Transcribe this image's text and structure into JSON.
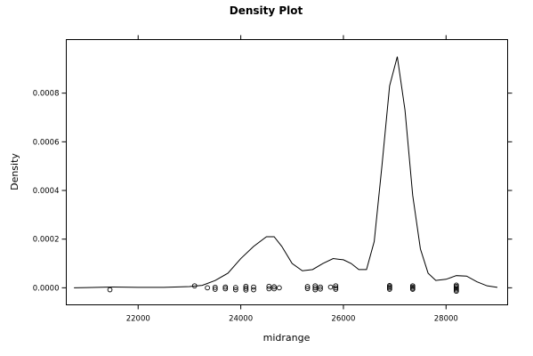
{
  "chart_data": {
    "type": "line",
    "title": "Density Plot",
    "xlabel": "midrange",
    "ylabel": "Density",
    "xlim": [
      20600,
      29200
    ],
    "ylim": [
      -7e-05,
      0.00102
    ],
    "x_ticks": [
      22000,
      24000,
      26000,
      28000
    ],
    "y_ticks": [
      0,
      0.0002,
      0.0004,
      0.0006,
      0.0008
    ],
    "x_tick_labels": [
      "22000",
      "24000",
      "26000",
      "28000"
    ],
    "y_tick_labels": [
      "0.0000",
      "0.0002",
      "0.0004",
      "0.0006",
      "0.0008"
    ],
    "grid": false,
    "series": [
      {
        "x": [
          20750,
          21000,
          21500,
          22000,
          22500,
          23000,
          23250,
          23500,
          23750,
          24000,
          24250,
          24500,
          24650,
          24800,
          25000,
          25200,
          25400,
          25600,
          25800,
          26000,
          26150,
          26300,
          26450,
          26600,
          26750,
          26900,
          27050,
          27200,
          27350,
          27500,
          27650,
          27800,
          28000,
          28200,
          28400,
          28600,
          28800,
          29000
        ],
        "y": [
          0.0,
          1e-06,
          3e-06,
          2e-06,
          2e-06,
          5e-06,
          1e-05,
          3e-05,
          6e-05,
          0.00012,
          0.00017,
          0.00021,
          0.00021,
          0.00017,
          0.0001,
          7e-05,
          7.5e-05,
          0.0001,
          0.00012,
          0.000115,
          0.0001,
          7.5e-05,
          7.5e-05,
          0.00019,
          0.0005,
          0.00083,
          0.00095,
          0.00073,
          0.00038,
          0.00016,
          6e-05,
          3e-05,
          3.5e-05,
          5e-05,
          4.8e-05,
          2.5e-05,
          8e-06,
          2e-06
        ]
      }
    ],
    "rug_points": [
      {
        "x": 21450,
        "y": -8e-06
      },
      {
        "x": 23100,
        "y": 8e-06
      },
      {
        "x": 23350,
        "y": 0.0
      },
      {
        "x": 23500,
        "y": 2e-06
      },
      {
        "x": 23500,
        "y": -6e-06
      },
      {
        "x": 23700,
        "y": 3e-06
      },
      {
        "x": 23700,
        "y": -4e-06
      },
      {
        "x": 23900,
        "y": 1e-06
      },
      {
        "x": 23900,
        "y": -8e-06
      },
      {
        "x": 24100,
        "y": 6e-06
      },
      {
        "x": 24100,
        "y": -2e-06
      },
      {
        "x": 24100,
        "y": -9e-06
      },
      {
        "x": 24250,
        "y": 3e-06
      },
      {
        "x": 24250,
        "y": -8e-06
      },
      {
        "x": 24550,
        "y": 6e-06
      },
      {
        "x": 24550,
        "y": -4e-06
      },
      {
        "x": 24650,
        "y": 4e-06
      },
      {
        "x": 24650,
        "y": -4e-06
      },
      {
        "x": 24750,
        "y": 0.0
      },
      {
        "x": 25300,
        "y": 5e-06
      },
      {
        "x": 25300,
        "y": -3e-06
      },
      {
        "x": 25450,
        "y": 8e-06
      },
      {
        "x": 25450,
        "y": 0.0
      },
      {
        "x": 25450,
        "y": -8e-06
      },
      {
        "x": 25550,
        "y": 3e-06
      },
      {
        "x": 25550,
        "y": -5e-06
      },
      {
        "x": 25750,
        "y": 3e-06
      },
      {
        "x": 25850,
        "y": 8e-06
      },
      {
        "x": 25850,
        "y": 0.0
      },
      {
        "x": 25850,
        "y": -6e-06
      },
      {
        "x": 26900,
        "y": 9e-06
      },
      {
        "x": 26900,
        "y": 4e-06
      },
      {
        "x": 26900,
        "y": -1e-06
      },
      {
        "x": 26900,
        "y": -6e-06
      },
      {
        "x": 27350,
        "y": 8e-06
      },
      {
        "x": 27350,
        "y": 3e-06
      },
      {
        "x": 27350,
        "y": -2e-06
      },
      {
        "x": 27350,
        "y": -6e-06
      },
      {
        "x": 28200,
        "y": 1.1e-05
      },
      {
        "x": 28200,
        "y": 6e-06
      },
      {
        "x": 28200,
        "y": 1e-06
      },
      {
        "x": 28200,
        "y": -4e-06
      },
      {
        "x": 28200,
        "y": -9e-06
      },
      {
        "x": 28200,
        "y": -1.4e-05
      }
    ]
  }
}
